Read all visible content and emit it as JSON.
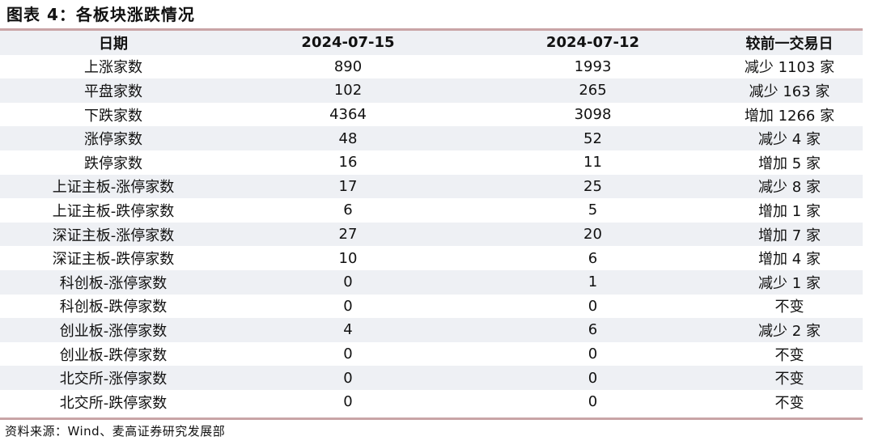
{
  "title": "图表 4：各板块涨跌情况",
  "table": {
    "headers": [
      "日期",
      "2024-07-15",
      "2024-07-12",
      "较前一交易日"
    ],
    "rows": [
      [
        "上涨家数",
        "890",
        "1993",
        "减少 1103 家"
      ],
      [
        "平盘家数",
        "102",
        "265",
        "减少 163 家"
      ],
      [
        "下跌家数",
        "4364",
        "3098",
        "增加 1266 家"
      ],
      [
        "涨停家数",
        "48",
        "52",
        "减少 4 家"
      ],
      [
        "跌停家数",
        "16",
        "11",
        "增加 5 家"
      ],
      [
        "上证主板-涨停家数",
        "17",
        "25",
        "减少 8 家"
      ],
      [
        "上证主板-跌停家数",
        "6",
        "5",
        "增加 1 家"
      ],
      [
        "深证主板-涨停家数",
        "27",
        "20",
        "增加 7 家"
      ],
      [
        "深证主板-跌停家数",
        "10",
        "6",
        "增加 4 家"
      ],
      [
        "科创板-涨停家数",
        "0",
        "1",
        "减少 1 家"
      ],
      [
        "科创板-跌停家数",
        "0",
        "0",
        "不变"
      ],
      [
        "创业板-涨停家数",
        "4",
        "6",
        "减少 2 家"
      ],
      [
        "创业板-跌停家数",
        "0",
        "0",
        "不变"
      ],
      [
        "北交所-涨停家数",
        "0",
        "0",
        "不变"
      ],
      [
        "北交所-跌停家数",
        "0",
        "0",
        "不变"
      ]
    ]
  },
  "source": "资料来源：Wind、麦高证券研究发展部",
  "colors": {
    "rule": "#c9a4a6",
    "stripe": "#eef0f4"
  }
}
